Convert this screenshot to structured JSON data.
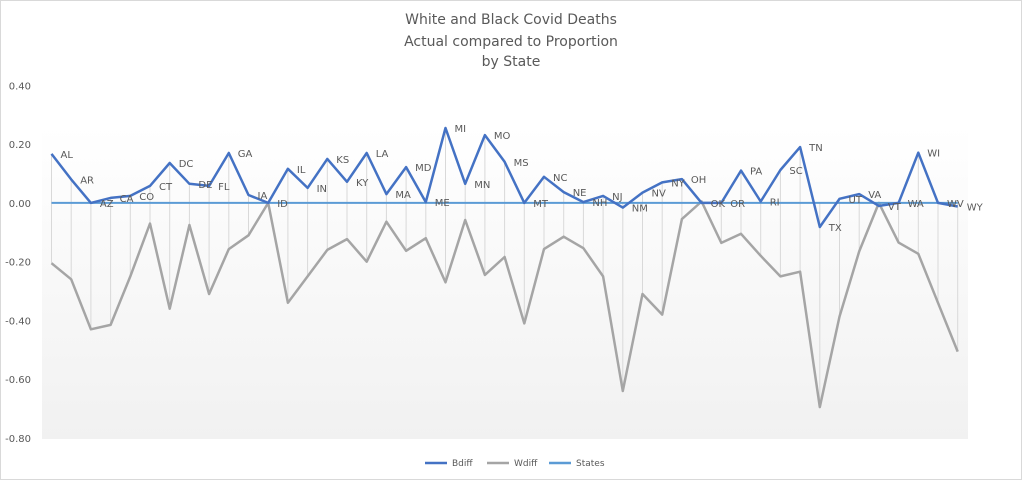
{
  "chart_data": {
    "type": "line",
    "title": [
      "White and Black Covid Deaths",
      "Actual compared to Proportion",
      "by State"
    ],
    "xlabel": "",
    "ylabel": "",
    "ylim": [
      -0.8,
      0.4
    ],
    "yticks": [
      0.4,
      0.2,
      0.0,
      -0.2,
      -0.4,
      -0.6,
      -0.8
    ],
    "ytick_labels": [
      "0.40",
      "0.20",
      "0.00",
      "-0.20",
      "-0.40",
      "-0.60",
      "-0.80"
    ],
    "grid": false,
    "legend_position": "bottom",
    "categories": [
      "AL",
      "AR",
      "AZ",
      "CA",
      "CO",
      "CT",
      "DC",
      "DE",
      "FL",
      "GA",
      "IA",
      "ID",
      "IL",
      "IN",
      "KS",
      "KY",
      "LA",
      "MA",
      "MD",
      "ME",
      "MI",
      "MN",
      "MO",
      "MS",
      "MT",
      "NC",
      "NE",
      "NH",
      "NJ",
      "NM",
      "NV",
      "NY",
      "OH",
      "OK",
      "OR",
      "PA",
      "RI",
      "SC",
      "TN",
      "TX",
      "UT",
      "VA",
      "VT",
      "WA",
      "WI",
      "WV",
      "WY"
    ],
    "series": [
      {
        "name": "Bdiff",
        "color": "#4472C4",
        "values": [
          0.167,
          0.08,
          0.0,
          0.017,
          0.024,
          0.058,
          0.136,
          0.065,
          0.058,
          0.17,
          0.027,
          0.0,
          0.116,
          0.051,
          0.15,
          0.072,
          0.17,
          0.03,
          0.122,
          0.003,
          0.255,
          0.065,
          0.231,
          0.14,
          0.0,
          0.089,
          0.037,
          0.003,
          0.024,
          -0.016,
          0.035,
          0.07,
          0.081,
          0.0,
          0.0,
          0.11,
          0.005,
          0.112,
          0.19,
          -0.082,
          0.014,
          0.03,
          -0.01,
          0.0,
          0.171,
          0.0,
          -0.012
        ]
      },
      {
        "name": "Wdiff",
        "color": "#A5A5A5",
        "values": [
          -0.205,
          -0.26,
          -0.43,
          -0.415,
          -0.25,
          -0.07,
          -0.36,
          -0.075,
          -0.31,
          -0.157,
          -0.11,
          0.0,
          -0.34,
          -0.25,
          -0.16,
          -0.123,
          -0.2,
          -0.064,
          -0.163,
          -0.12,
          -0.27,
          -0.058,
          -0.245,
          -0.184,
          -0.41,
          -0.157,
          -0.115,
          -0.154,
          -0.25,
          -0.64,
          -0.31,
          -0.38,
          -0.055,
          0.005,
          -0.136,
          -0.105,
          -0.18,
          -0.25,
          -0.234,
          -0.695,
          -0.387,
          -0.165,
          0.0,
          -0.135,
          -0.173,
          -0.34,
          -0.506
        ]
      },
      {
        "name": "States",
        "color": "#5B9BD5",
        "values": [
          0,
          0,
          0,
          0,
          0,
          0,
          0,
          0,
          0,
          0,
          0,
          0,
          0,
          0,
          0,
          0,
          0,
          0,
          0,
          0,
          0,
          0,
          0,
          0,
          0,
          0,
          0,
          0,
          0,
          0,
          0,
          0,
          0,
          0,
          0,
          0,
          0,
          0,
          0,
          0,
          0,
          0,
          0,
          0,
          0,
          0,
          0
        ]
      }
    ],
    "data_labels_series": "Bdiff",
    "high_low_lines": true
  }
}
